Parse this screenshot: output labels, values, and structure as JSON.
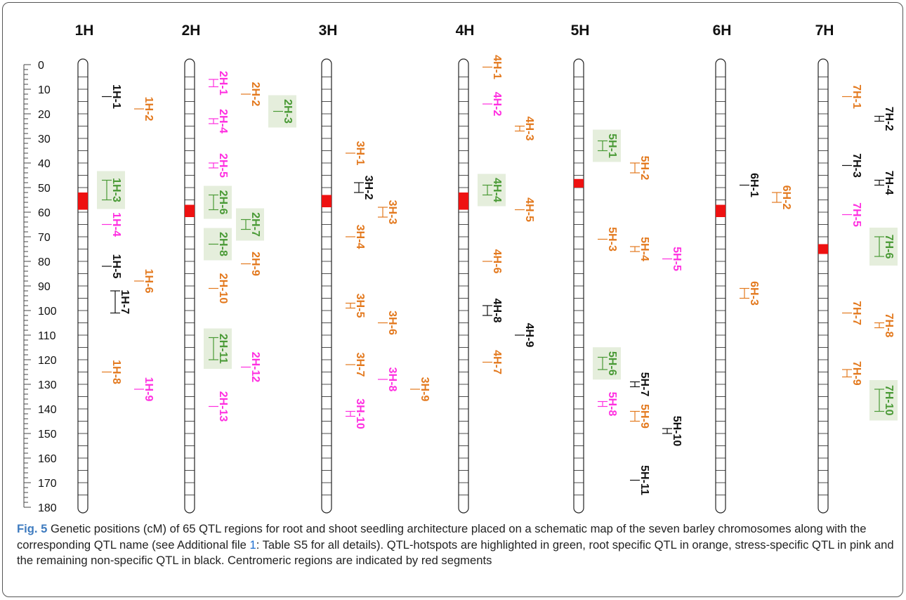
{
  "scale": {
    "max": 180,
    "step": 10,
    "label_values": [
      0,
      10,
      20,
      30,
      40,
      50,
      60,
      70,
      80,
      90,
      100,
      110,
      120,
      130,
      140,
      150,
      160,
      170,
      180
    ]
  },
  "colors": {
    "hotspot": "#4a9a36",
    "root": "#e3791e",
    "stress": "#ff2fe0",
    "nonspecific": "#111111",
    "centromere": "#ee1111",
    "hotspot_bg": "#e5eedc"
  },
  "chromosomes": [
    {
      "name": "1H",
      "length": 180,
      "centromere": [
        52,
        59
      ]
    },
    {
      "name": "2H",
      "length": 180,
      "centromere": [
        57,
        62
      ]
    },
    {
      "name": "3H",
      "length": 180,
      "centromere": [
        53,
        58
      ]
    },
    {
      "name": "4H",
      "length": 180,
      "centromere": [
        52,
        59
      ]
    },
    {
      "name": "5H",
      "length": 180,
      "centromere": [
        46.5,
        50
      ]
    },
    {
      "name": "6H",
      "length": 180,
      "centromere": [
        57,
        62
      ]
    },
    {
      "name": "7H",
      "length": 180,
      "centromere": [
        73,
        77
      ]
    }
  ],
  "qtl": [
    {
      "name": "1H-1",
      "chr": "1H",
      "type": "nonspecific",
      "start": 13,
      "end": 13,
      "col": 1
    },
    {
      "name": "1H-2",
      "chr": "1H",
      "type": "root",
      "start": 18,
      "end": 18,
      "col": 2
    },
    {
      "name": "1H-3",
      "chr": "1H",
      "type": "hotspot",
      "start": 47,
      "end": 55,
      "col": 1
    },
    {
      "name": "1H-4",
      "chr": "1H",
      "type": "stress",
      "start": 65,
      "end": 65,
      "col": 1
    },
    {
      "name": "1H-5",
      "chr": "1H",
      "type": "nonspecific",
      "start": 82,
      "end": 82,
      "col": 1
    },
    {
      "name": "1H-6",
      "chr": "1H",
      "type": "root",
      "start": 88,
      "end": 88,
      "col": 2
    },
    {
      "name": "1H-7",
      "chr": "1H",
      "type": "nonspecific",
      "start": 92,
      "end": 101,
      "col": 1.3
    },
    {
      "name": "1H-8",
      "chr": "1H",
      "type": "root",
      "start": 125,
      "end": 125,
      "col": 1
    },
    {
      "name": "1H-9",
      "chr": "1H",
      "type": "stress",
      "start": 132,
      "end": 132,
      "col": 2
    },
    {
      "name": "2H-1",
      "chr": "2H",
      "type": "stress",
      "start": 6,
      "end": 9,
      "col": 1
    },
    {
      "name": "2H-2",
      "chr": "2H",
      "type": "root",
      "start": 12,
      "end": 12,
      "col": 2
    },
    {
      "name": "2H-3",
      "chr": "2H",
      "type": "hotspot",
      "start": 19,
      "end": 19,
      "col": 3
    },
    {
      "name": "2H-4",
      "chr": "2H",
      "type": "stress",
      "start": 22,
      "end": 24,
      "col": 1
    },
    {
      "name": "2H-5",
      "chr": "2H",
      "type": "stress",
      "start": 40,
      "end": 42,
      "col": 1
    },
    {
      "name": "2H-6",
      "chr": "2H",
      "type": "hotspot",
      "start": 53,
      "end": 59,
      "col": 1
    },
    {
      "name": "2H-7",
      "chr": "2H",
      "type": "hotspot",
      "start": 63,
      "end": 67,
      "col": 2
    },
    {
      "name": "2H-8",
      "chr": "2H",
      "type": "hotspot",
      "start": 73,
      "end": 73,
      "col": 1
    },
    {
      "name": "2H-9",
      "chr": "2H",
      "type": "root",
      "start": 81,
      "end": 81,
      "col": 2
    },
    {
      "name": "2H-10",
      "chr": "2H",
      "type": "root",
      "start": 91,
      "end": 91,
      "col": 1
    },
    {
      "name": "2H-11",
      "chr": "2H",
      "type": "hotspot",
      "start": 111,
      "end": 120,
      "col": 1
    },
    {
      "name": "2H-12",
      "chr": "2H",
      "type": "stress",
      "start": 123,
      "end": 123,
      "col": 2
    },
    {
      "name": "2H-13",
      "chr": "2H",
      "type": "stress",
      "start": 139,
      "end": 139,
      "col": 1
    },
    {
      "name": "3H-1",
      "chr": "3H",
      "type": "root",
      "start": 36,
      "end": 36,
      "col": 1
    },
    {
      "name": "3H-2",
      "chr": "3H",
      "type": "nonspecific",
      "start": 48,
      "end": 52,
      "col": 1.3
    },
    {
      "name": "3H-3",
      "chr": "3H",
      "type": "root",
      "start": 58,
      "end": 62,
      "col": 2
    },
    {
      "name": "3H-4",
      "chr": "3H",
      "type": "root",
      "start": 70,
      "end": 70,
      "col": 1
    },
    {
      "name": "3H-5",
      "chr": "3H",
      "type": "root",
      "start": 97,
      "end": 99,
      "col": 1
    },
    {
      "name": "3H-6",
      "chr": "3H",
      "type": "root",
      "start": 105,
      "end": 105,
      "col": 2
    },
    {
      "name": "3H-7",
      "chr": "3H",
      "type": "root",
      "start": 122,
      "end": 122,
      "col": 1
    },
    {
      "name": "3H-8",
      "chr": "3H",
      "type": "stress",
      "start": 128,
      "end": 128,
      "col": 2
    },
    {
      "name": "3H-9",
      "chr": "3H",
      "type": "root",
      "start": 132,
      "end": 132,
      "col": 3
    },
    {
      "name": "3H-10",
      "chr": "3H",
      "type": "stress",
      "start": 141,
      "end": 143,
      "col": 1
    },
    {
      "name": "4H-1",
      "chr": "4H",
      "type": "root",
      "start": 1,
      "end": 1,
      "col": 1
    },
    {
      "name": "4H-2",
      "chr": "4H",
      "type": "stress",
      "start": 16,
      "end": 16,
      "col": 1
    },
    {
      "name": "4H-3",
      "chr": "4H",
      "type": "root",
      "start": 25,
      "end": 27,
      "col": 2
    },
    {
      "name": "4H-4",
      "chr": "4H",
      "type": "hotspot",
      "start": 49,
      "end": 53,
      "col": 1
    },
    {
      "name": "4H-5",
      "chr": "4H",
      "type": "root",
      "start": 59,
      "end": 59,
      "col": 2
    },
    {
      "name": "4H-6",
      "chr": "4H",
      "type": "root",
      "start": 80,
      "end": 80,
      "col": 1
    },
    {
      "name": "4H-7",
      "chr": "4H",
      "type": "root",
      "start": 121,
      "end": 121,
      "col": 1
    },
    {
      "name": "4H-8",
      "chr": "4H",
      "type": "nonspecific",
      "start": 98,
      "end": 102,
      "col": 1
    },
    {
      "name": "4H-9",
      "chr": "4H",
      "type": "nonspecific",
      "start": 110,
      "end": 110,
      "col": 2
    },
    {
      "name": "5H-1",
      "chr": "5H",
      "type": "hotspot",
      "start": 31,
      "end": 35,
      "col": 1
    },
    {
      "name": "5H-2",
      "chr": "5H",
      "type": "root",
      "start": 40,
      "end": 44,
      "col": 2
    },
    {
      "name": "5H-3",
      "chr": "5H",
      "type": "root",
      "start": 71,
      "end": 71,
      "col": 1
    },
    {
      "name": "5H-4",
      "chr": "5H",
      "type": "root",
      "start": 74,
      "end": 76,
      "col": 2
    },
    {
      "name": "5H-5",
      "chr": "5H",
      "type": "stress",
      "start": 79,
      "end": 79,
      "col": 3
    },
    {
      "name": "5H-6",
      "chr": "5H",
      "type": "hotspot",
      "start": 119,
      "end": 124,
      "col": 1
    },
    {
      "name": "5H-7",
      "chr": "5H",
      "type": "nonspecific",
      "start": 129,
      "end": 131,
      "col": 2
    },
    {
      "name": "5H-8",
      "chr": "5H",
      "type": "stress",
      "start": 137,
      "end": 139,
      "col": 1
    },
    {
      "name": "5H-9",
      "chr": "5H",
      "type": "root",
      "start": 141,
      "end": 145,
      "col": 2
    },
    {
      "name": "5H-10",
      "chr": "5H",
      "type": "nonspecific",
      "start": 148,
      "end": 150,
      "col": 3
    },
    {
      "name": "5H-11",
      "chr": "5H",
      "type": "nonspecific",
      "start": 169,
      "end": 169,
      "col": 2
    },
    {
      "name": "6H-1",
      "chr": "6H",
      "type": "nonspecific",
      "start": 49,
      "end": 49,
      "col": 1
    },
    {
      "name": "6H-2",
      "chr": "6H",
      "type": "root",
      "start": 52,
      "end": 56,
      "col": 2
    },
    {
      "name": "6H-3",
      "chr": "6H",
      "type": "root",
      "start": 91,
      "end": 95,
      "col": 1
    },
    {
      "name": "7H-1",
      "chr": "7H",
      "type": "root",
      "start": 13,
      "end": 13,
      "col": 1
    },
    {
      "name": "7H-2",
      "chr": "7H",
      "type": "nonspecific",
      "start": 21,
      "end": 23,
      "col": 2
    },
    {
      "name": "7H-3",
      "chr": "7H",
      "type": "nonspecific",
      "start": 41,
      "end": 41,
      "col": 1
    },
    {
      "name": "7H-4",
      "chr": "7H",
      "type": "nonspecific",
      "start": 47,
      "end": 49,
      "col": 2
    },
    {
      "name": "7H-5",
      "chr": "7H",
      "type": "stress",
      "start": 61,
      "end": 61,
      "col": 1
    },
    {
      "name": "7H-6",
      "chr": "7H",
      "type": "hotspot",
      "start": 70,
      "end": 78,
      "col": 2
    },
    {
      "name": "7H-7",
      "chr": "7H",
      "type": "root",
      "start": 101,
      "end": 101,
      "col": 1
    },
    {
      "name": "7H-8",
      "chr": "7H",
      "type": "root",
      "start": 105,
      "end": 107,
      "col": 2
    },
    {
      "name": "7H-9",
      "chr": "7H",
      "type": "root",
      "start": 124,
      "end": 127,
      "col": 1
    },
    {
      "name": "7H-10",
      "chr": "7H",
      "type": "hotspot",
      "start": 132,
      "end": 141,
      "col": 2
    }
  ],
  "caption": {
    "fig_label": "Fig. 5",
    "text_before_link": " Genetic positions (cM) of 65 QTL regions for root and shoot seedling architecture placed on a schematic map of the seven barley chromosomes along with the corresponding QTL name (see Additional file ",
    "link_text": "1",
    "text_after_link": ": Table S5 for all details). QTL-hotspots are highlighted in green, root specific QTL in orange, stress-specific QTL in pink and the remaining non-specific QTL in black. Centromeric regions are indicated by red segments"
  }
}
